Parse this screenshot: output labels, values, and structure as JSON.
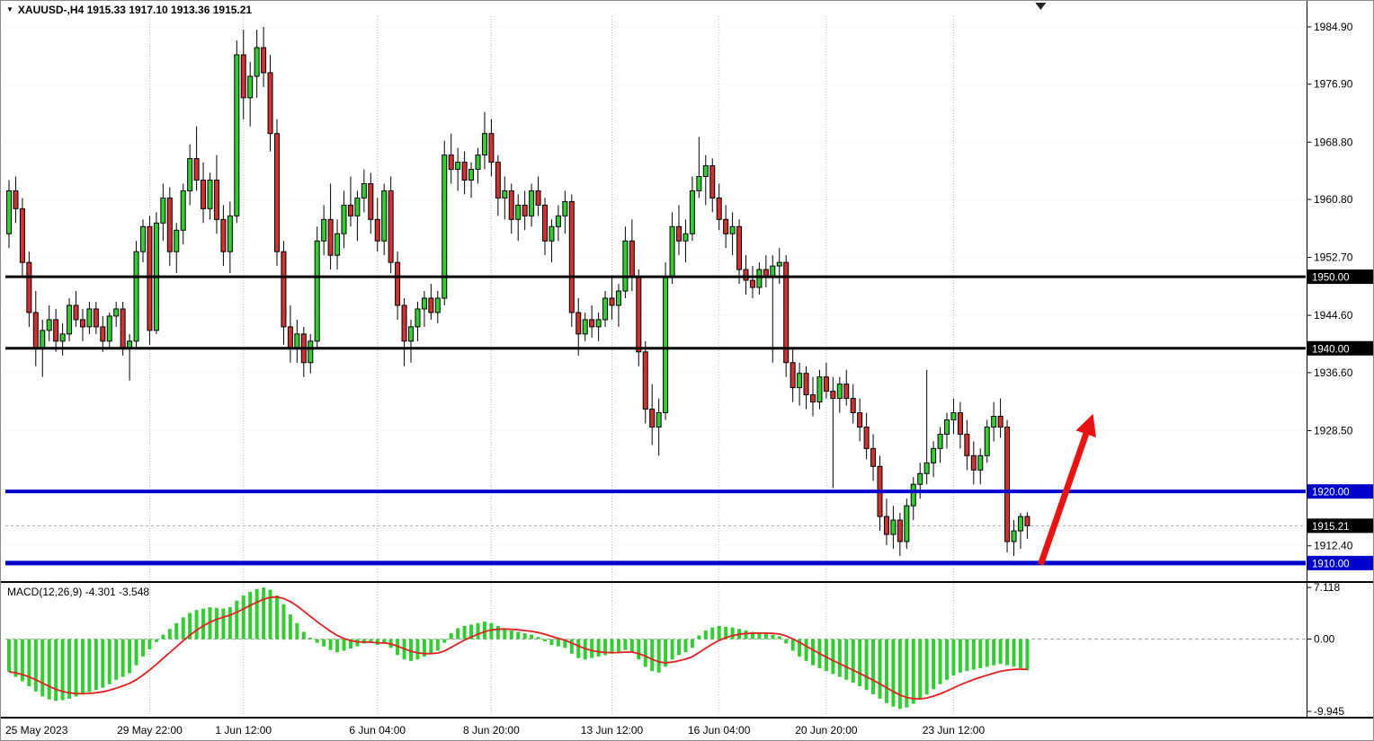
{
  "header": {
    "collapse_icon": "▼",
    "symbol_info": "XAUUSD-,H4 1915.33 1917.10 1913.36 1915.21"
  },
  "colors": {
    "bull": "#33cc33",
    "bear": "#cc3333",
    "outline": "#000000",
    "signal": "#e01f1f",
    "arrow": "#e81414",
    "blue_level": "#0000cc",
    "black_level": "#000000",
    "vgrid": "#bdbdbd",
    "hgrid": "#e2e2e2",
    "zero_line": "#9e9e9e",
    "bid_line": "#aaaaaa",
    "axis_text": "#000000",
    "tag_text": "#ffffff"
  },
  "chart_data": {
    "type": "candlestick",
    "symbol": "XAUUSD-",
    "timeframe": "H4",
    "ohlc": {
      "open": "1915.33",
      "high": "1917.10",
      "low": "1913.36",
      "close": "1915.21"
    },
    "main": {
      "ylim": [
        1907.6,
        1986.4
      ],
      "yticks": [
        "1984.90",
        "1976.90",
        "1968.80",
        "1960.80",
        "1952.70",
        "1944.60",
        "1936.60",
        "1928.50",
        "1912.40"
      ],
      "levels": [
        {
          "name": "resistance-line-1950",
          "label": "1950.00",
          "value": 1950.0,
          "color": "#000000",
          "width": 3
        },
        {
          "name": "support-line-1940",
          "label": "1940.00",
          "value": 1940.0,
          "color": "#000000",
          "width": 3
        },
        {
          "name": "support-line-1920",
          "label": "1920.00",
          "value": 1920.0,
          "color": "#0000cc",
          "width": 4
        },
        {
          "name": "support-line-1910",
          "label": "1910.00",
          "value": 1910.0,
          "color": "#0000cc",
          "width": 5
        }
      ],
      "bid": {
        "label": "1915.21",
        "value": 1915.21
      },
      "candles": [
        [
          1956,
          1963.5,
          1954,
          1962
        ],
        [
          1962,
          1964,
          1957.5,
          1959.5
        ],
        [
          1959.5,
          1961,
          1950,
          1952
        ],
        [
          1952,
          1953.5,
          1943,
          1945
        ],
        [
          1945,
          1948,
          1937.5,
          1940
        ],
        [
          1940,
          1944,
          1936,
          1942.5
        ],
        [
          1942.5,
          1946,
          1941,
          1944
        ],
        [
          1944,
          1945.5,
          1939.5,
          1941
        ],
        [
          1941,
          1943.5,
          1939,
          1942
        ],
        [
          1942,
          1947,
          1941,
          1946
        ],
        [
          1946,
          1948,
          1943,
          1944
        ],
        [
          1944,
          1945.5,
          1941,
          1943
        ],
        [
          1943,
          1946.5,
          1942,
          1945.5
        ],
        [
          1945.5,
          1946.5,
          1942,
          1943
        ],
        [
          1943,
          1944.5,
          1939.5,
          1941
        ],
        [
          1941,
          1945,
          1940,
          1944.5
        ],
        [
          1944.5,
          1946.5,
          1943,
          1945.5
        ],
        [
          1945.5,
          1946.5,
          1939,
          1940
        ],
        [
          1940,
          1942,
          1935.5,
          1941
        ],
        [
          1941,
          1955,
          1940,
          1953.5
        ],
        [
          1953.5,
          1958,
          1952,
          1957
        ],
        [
          1957,
          1958.5,
          1940.5,
          1942.5
        ],
        [
          1942.5,
          1959,
          1942,
          1957.5
        ],
        [
          1957.5,
          1963,
          1955,
          1961
        ],
        [
          1961,
          1962.5,
          1951.5,
          1953.5
        ],
        [
          1953.5,
          1957.5,
          1950.5,
          1956.5
        ],
        [
          1956.5,
          1963,
          1954.5,
          1962
        ],
        [
          1962,
          1968.5,
          1960,
          1966.5
        ],
        [
          1966.5,
          1971,
          1962,
          1963.5
        ],
        [
          1963.5,
          1966,
          1957.5,
          1959.5
        ],
        [
          1959.5,
          1964.5,
          1958,
          1963.5
        ],
        [
          1963.5,
          1967,
          1956,
          1958
        ],
        [
          1958,
          1960,
          1951.5,
          1953.5
        ],
        [
          1953.5,
          1960.5,
          1950.5,
          1958.5
        ],
        [
          1958.5,
          1983,
          1957.5,
          1981
        ],
        [
          1981,
          1984.5,
          1972,
          1975
        ],
        [
          1975,
          1980,
          1971,
          1978
        ],
        [
          1978,
          1984.5,
          1975,
          1982
        ],
        [
          1982,
          1984.9,
          1976.5,
          1978.5
        ],
        [
          1978.5,
          1981,
          1967.5,
          1970
        ],
        [
          1970,
          1972,
          1951.5,
          1953.5
        ],
        [
          1953.5,
          1955,
          1940.5,
          1943
        ],
        [
          1943,
          1946,
          1938,
          1940
        ],
        [
          1940,
          1944,
          1938,
          1942
        ],
        [
          1942,
          1943,
          1936,
          1938
        ],
        [
          1938,
          1942,
          1936.5,
          1941
        ],
        [
          1941,
          1957,
          1940,
          1955
        ],
        [
          1955,
          1960,
          1953,
          1958
        ],
        [
          1958,
          1963,
          1951,
          1953
        ],
        [
          1953,
          1958,
          1951,
          1956
        ],
        [
          1956,
          1962,
          1954,
          1960
        ],
        [
          1960,
          1964,
          1957,
          1958.5
        ],
        [
          1958.5,
          1962,
          1955,
          1961
        ],
        [
          1961,
          1965,
          1959,
          1963
        ],
        [
          1963,
          1964.5,
          1956,
          1958
        ],
        [
          1958,
          1961,
          1953.5,
          1955
        ],
        [
          1955,
          1963,
          1953,
          1962
        ],
        [
          1962,
          1964,
          1950.5,
          1952
        ],
        [
          1952,
          1953.5,
          1944,
          1946
        ],
        [
          1946,
          1947,
          1937.5,
          1941
        ],
        [
          1941,
          1944,
          1938,
          1943
        ],
        [
          1943,
          1946.5,
          1941,
          1945.5
        ],
        [
          1945.5,
          1948,
          1943,
          1947
        ],
        [
          1947,
          1949,
          1944,
          1945
        ],
        [
          1945,
          1948,
          1943.5,
          1947
        ],
        [
          1947,
          1969,
          1946,
          1967
        ],
        [
          1967,
          1970,
          1963,
          1965
        ],
        [
          1965,
          1968,
          1962,
          1966
        ],
        [
          1966,
          1967.5,
          1961.5,
          1963.5
        ],
        [
          1963.5,
          1966,
          1961,
          1965
        ],
        [
          1965,
          1968,
          1963,
          1967
        ],
        [
          1967,
          1973,
          1965,
          1970
        ],
        [
          1970,
          1972,
          1964,
          1966
        ],
        [
          1966,
          1967,
          1958.5,
          1961
        ],
        [
          1961,
          1964,
          1958,
          1962
        ],
        [
          1962,
          1963,
          1956,
          1958
        ],
        [
          1958,
          1961.5,
          1955,
          1960
        ],
        [
          1960,
          1962,
          1956.5,
          1958.5
        ],
        [
          1958.5,
          1963,
          1957,
          1962
        ],
        [
          1962,
          1964,
          1958.5,
          1960
        ],
        [
          1960,
          1961,
          1953,
          1955
        ],
        [
          1955,
          1958,
          1952,
          1957
        ],
        [
          1957,
          1960,
          1955,
          1958.5
        ],
        [
          1958.5,
          1962,
          1956,
          1960.5
        ],
        [
          1960.5,
          1961.5,
          1943,
          1945
        ],
        [
          1945,
          1947,
          1939,
          1942
        ],
        [
          1942,
          1945,
          1941,
          1944
        ],
        [
          1944,
          1946,
          1941.5,
          1943
        ],
        [
          1943,
          1945,
          1941,
          1944
        ],
        [
          1944,
          1948,
          1943,
          1947
        ],
        [
          1947,
          1950,
          1944,
          1946
        ],
        [
          1946,
          1949,
          1943,
          1948
        ],
        [
          1948,
          1957,
          1947,
          1955
        ],
        [
          1955,
          1958,
          1948,
          1950
        ],
        [
          1950,
          1951,
          1937.5,
          1939.5
        ],
        [
          1939.5,
          1941,
          1929.5,
          1931.5
        ],
        [
          1931.5,
          1935,
          1926.5,
          1929
        ],
        [
          1929,
          1933,
          1925,
          1931
        ],
        [
          1931,
          1952,
          1930,
          1950
        ],
        [
          1950,
          1959,
          1949,
          1957
        ],
        [
          1957,
          1960,
          1953,
          1955
        ],
        [
          1955,
          1958,
          1952,
          1956
        ],
        [
          1956,
          1964,
          1955,
          1962
        ],
        [
          1962,
          1969.5,
          1961,
          1964
        ],
        [
          1964,
          1967,
          1960,
          1965.5
        ],
        [
          1965.5,
          1966.5,
          1959,
          1961
        ],
        [
          1961,
          1963,
          1956.5,
          1958
        ],
        [
          1958,
          1960,
          1954,
          1956
        ],
        [
          1956,
          1959,
          1953,
          1957
        ],
        [
          1957,
          1958,
          1949,
          1951
        ],
        [
          1951,
          1953,
          1947.5,
          1949.5
        ],
        [
          1949.5,
          1951.5,
          1947,
          1948.5
        ],
        [
          1948.5,
          1952,
          1947.5,
          1951
        ],
        [
          1951,
          1953,
          1948.5,
          1950
        ],
        [
          1950,
          1953,
          1938,
          1951.5
        ],
        [
          1951.5,
          1954,
          1949,
          1952
        ],
        [
          1952,
          1953,
          1936,
          1938
        ],
        [
          1938,
          1940,
          1932.5,
          1934.5
        ],
        [
          1934.5,
          1938,
          1932,
          1936.5
        ],
        [
          1936.5,
          1937.5,
          1931.5,
          1933.5
        ],
        [
          1933.5,
          1936,
          1930.5,
          1932.5
        ],
        [
          1932.5,
          1937,
          1931.5,
          1936
        ],
        [
          1936,
          1938,
          1933,
          1934
        ],
        [
          1934,
          1936,
          1920.5,
          1933
        ],
        [
          1933,
          1936,
          1931,
          1935
        ],
        [
          1935,
          1937,
          1932,
          1933
        ],
        [
          1933,
          1935,
          1929.5,
          1931
        ],
        [
          1931,
          1933,
          1927,
          1929
        ],
        [
          1929,
          1931,
          1924.5,
          1926
        ],
        [
          1926,
          1928,
          1921.5,
          1923.5
        ],
        [
          1923.5,
          1925,
          1914.5,
          1916.5
        ],
        [
          1916.5,
          1919,
          1912.5,
          1914
        ],
        [
          1914,
          1918,
          1912,
          1916
        ],
        [
          1916,
          1917,
          1911,
          1913
        ],
        [
          1913,
          1919,
          1912,
          1918
        ],
        [
          1918,
          1922,
          1916,
          1921
        ],
        [
          1921,
          1924,
          1919,
          1922.5
        ],
        [
          1922.5,
          1937,
          1921,
          1924
        ],
        [
          1924,
          1927,
          1922,
          1926
        ],
        [
          1926,
          1929,
          1924,
          1928
        ],
        [
          1928,
          1931,
          1926,
          1930
        ],
        [
          1930,
          1933,
          1928,
          1931
        ],
        [
          1931,
          1932.5,
          1926,
          1928
        ],
        [
          1928,
          1930,
          1923,
          1925
        ],
        [
          1925,
          1927,
          1921,
          1923
        ],
        [
          1923,
          1926,
          1921,
          1925
        ],
        [
          1925,
          1930,
          1924,
          1929
        ],
        [
          1929,
          1932.5,
          1927,
          1930.5
        ],
        [
          1930.5,
          1933,
          1927.5,
          1929
        ],
        [
          1929,
          1930,
          1911.5,
          1913
        ],
        [
          1913,
          1916,
          1911,
          1914.5
        ],
        [
          1914.5,
          1917,
          1912,
          1916.5
        ],
        [
          1916.5,
          1917.1,
          1913.4,
          1915.2
        ]
      ]
    },
    "macd": {
      "label": "MACD(12,26,9) -4.301 -3.548",
      "params": "12,26,9",
      "value": "-4.301",
      "signal_value": "-3.548",
      "ylim": [
        -9.945,
        7.118
      ],
      "yticks": [
        "7.118",
        "0.00",
        "-9.945"
      ],
      "signal_ema_period": 9,
      "histogram": [
        -4.5,
        -5.2,
        -5.8,
        -6.5,
        -7.2,
        -7.9,
        -8.3,
        -8.5,
        -8.4,
        -8.2,
        -7.9,
        -7.6,
        -7.3,
        -7.0,
        -6.7,
        -6.2,
        -5.6,
        -5.2,
        -4.7,
        -3.6,
        -2.4,
        -1.4,
        -0.4,
        0.6,
        1.4,
        2.2,
        3.0,
        3.6,
        4.0,
        4.2,
        4.4,
        4.3,
        4.2,
        4.4,
        5.3,
        6.0,
        6.5,
        6.9,
        7.1,
        6.8,
        6.0,
        4.8,
        3.4,
        2.2,
        1.0,
        0.2,
        -0.5,
        -1.0,
        -1.5,
        -1.8,
        -1.6,
        -1.3,
        -1.0,
        -0.6,
        -0.5,
        -0.8,
        -0.6,
        -1.2,
        -2.2,
        -2.8,
        -3.0,
        -2.8,
        -2.4,
        -2.0,
        -1.6,
        -0.5,
        0.8,
        1.5,
        1.8,
        2.0,
        2.2,
        2.4,
        2.2,
        1.8,
        1.5,
        1.2,
        1.0,
        0.8,
        0.6,
        0.3,
        -0.3,
        -0.8,
        -1.0,
        -1.2,
        -2.0,
        -2.6,
        -2.8,
        -2.6,
        -2.4,
        -2.2,
        -2.0,
        -1.8,
        -1.5,
        -1.8,
        -2.8,
        -3.8,
        -4.4,
        -4.6,
        -3.8,
        -2.8,
        -2.2,
        -1.8,
        -1.2,
        0.5,
        1.2,
        1.6,
        1.8,
        1.7,
        1.6,
        1.4,
        1.2,
        1.0,
        0.9,
        0.8,
        0.6,
        0.4,
        -0.6,
        -1.6,
        -2.4,
        -3.0,
        -3.6,
        -4.0,
        -4.4,
        -4.8,
        -5.2,
        -5.6,
        -6.0,
        -6.5,
        -7.0,
        -7.6,
        -8.2,
        -8.8,
        -9.3,
        -9.6,
        -9.4,
        -8.9,
        -8.3,
        -7.6,
        -6.9,
        -6.2,
        -5.6,
        -5.0,
        -4.6,
        -4.4,
        -4.2,
        -4.0,
        -3.8,
        -3.6,
        -3.4,
        -3.6,
        -3.8,
        -4.0,
        -4.3
      ]
    },
    "xaxis": {
      "labels": [
        {
          "text": "25 May 2023",
          "index": 0,
          "align": "left",
          "grid": false
        },
        {
          "text": "29 May 22:00",
          "index": 21
        },
        {
          "text": "1 Jun 12:00",
          "index": 35
        },
        {
          "text": "6 Jun 04:00",
          "index": 55
        },
        {
          "text": "8 Jun 20:00",
          "index": 72
        },
        {
          "text": "13 Jun 12:00",
          "index": 90
        },
        {
          "text": "16 Jun 04:00",
          "index": 106
        },
        {
          "text": "20 Jun 20:00",
          "index": 122
        },
        {
          "text": "23 Jun 12:00",
          "index": 141
        }
      ]
    },
    "annotations": {
      "arrow": {
        "direction": "up",
        "color": "#e81414",
        "from_index": 154,
        "from_price": 1909.8,
        "to_index": 161.5,
        "to_price": 1930.0
      }
    },
    "shift_marker_index": 154
  }
}
